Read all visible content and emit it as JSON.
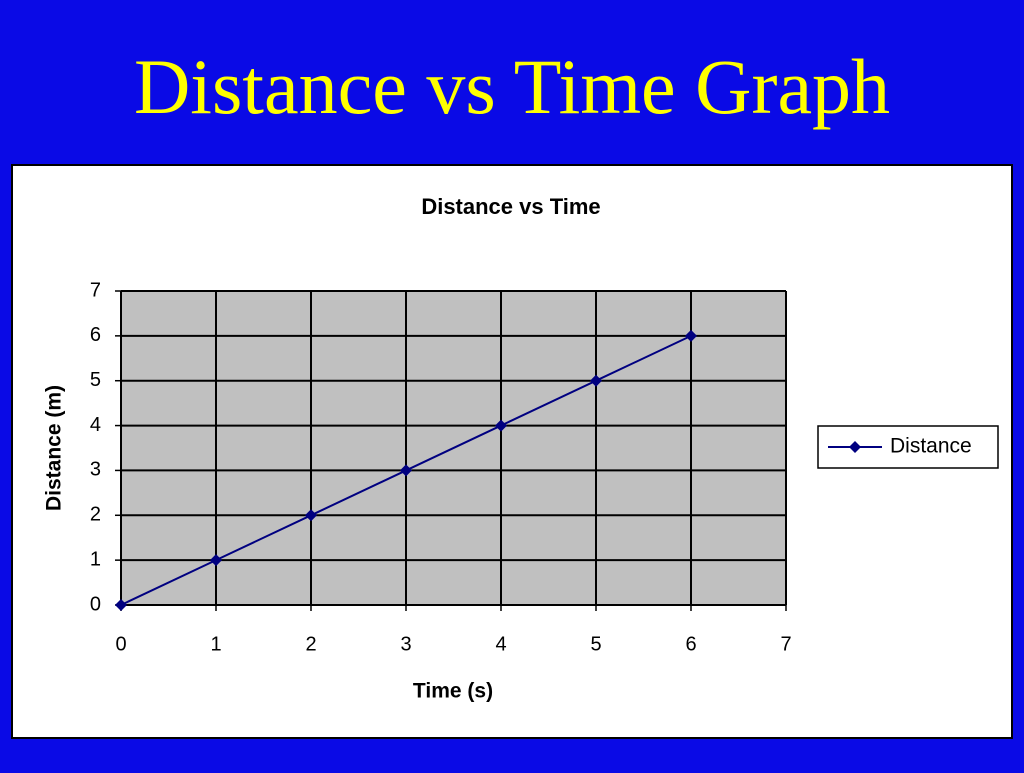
{
  "title": "Distance vs Time Graph",
  "chart_data": {
    "type": "line",
    "title": "Distance vs Time",
    "x_label": "Time (s)",
    "y_label": "Distance (m)",
    "x": [
      0,
      1,
      2,
      3,
      4,
      5,
      6
    ],
    "series": [
      {
        "name": "Distance",
        "color": "#000080",
        "values": [
          0,
          1,
          2,
          3,
          4,
          5,
          6
        ]
      }
    ],
    "xlim": [
      0,
      7
    ],
    "xticks": [
      0,
      1,
      2,
      3,
      4,
      5,
      6,
      7
    ],
    "ylim": [
      0,
      7
    ],
    "yticks": [
      0,
      1,
      2,
      3,
      4,
      5,
      6,
      7
    ],
    "grid": true,
    "legend": "right"
  }
}
